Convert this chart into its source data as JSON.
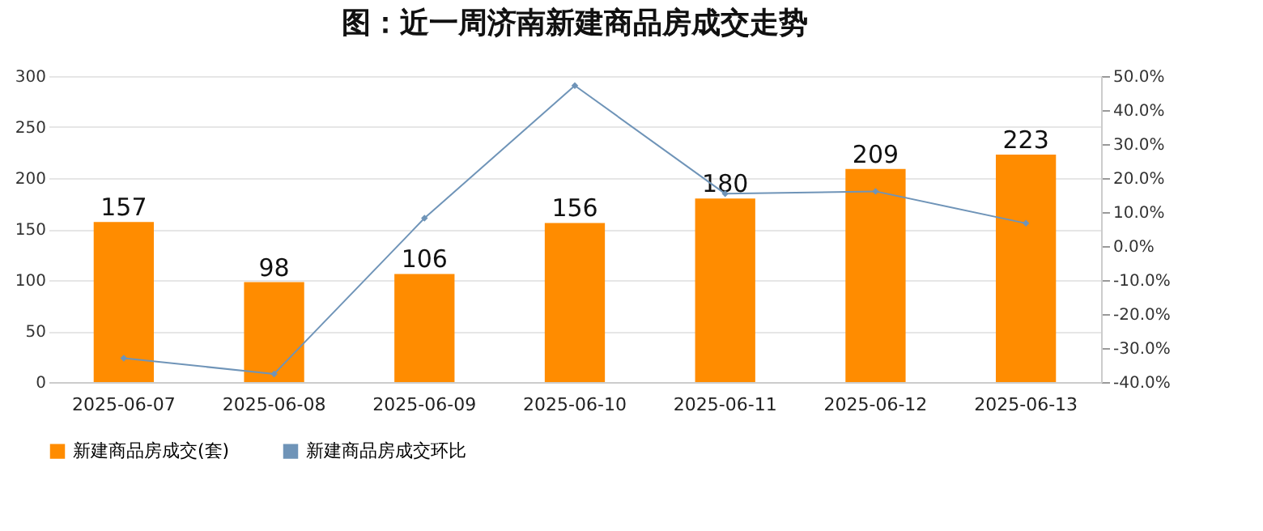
{
  "chart_data": {
    "type": "bar",
    "title": "图：近一周济南新建商品房成交走势",
    "categories": [
      "2025-06-07",
      "2025-06-08",
      "2025-06-09",
      "2025-06-10",
      "2025-06-11",
      "2025-06-12",
      "2025-06-13"
    ],
    "series": [
      {
        "name": "新建商品房成交(套)",
        "color": "#ff8c00",
        "values": [
          157,
          98,
          106,
          156,
          180,
          209,
          223
        ],
        "value_labels": [
          "157",
          "98",
          "106",
          "156",
          "180",
          "209",
          "223"
        ]
      },
      {
        "name": "新建商品房成交环比",
        "type": "line",
        "axis": "y2",
        "color": "#6f94b8",
        "marker": "diamond",
        "line_style": "solid",
        "values": [
          -33,
          -37.6,
          8.2,
          47.2,
          15.4,
          16.1,
          6.7
        ]
      }
    ],
    "ylim": [
      0,
      300
    ],
    "yticks": [
      0,
      50,
      100,
      150,
      200,
      250,
      300
    ],
    "y2lim": [
      -40,
      50
    ],
    "y2ticks": [
      {
        "value": -40,
        "label": "-40.0%"
      },
      {
        "value": -30,
        "label": "-30.0%"
      },
      {
        "value": -20,
        "label": "-20.0%"
      },
      {
        "value": -10,
        "label": "-10.0%"
      },
      {
        "value": 0,
        "label": "0.0%"
      },
      {
        "value": 10,
        "label": "10.0%"
      },
      {
        "value": 20,
        "label": "20.0%"
      },
      {
        "value": 30,
        "label": "30.0%"
      },
      {
        "value": 40,
        "label": "40.0%"
      },
      {
        "value": 50,
        "label": "50.0%"
      }
    ],
    "grid": "y",
    "legend": "bottom"
  }
}
